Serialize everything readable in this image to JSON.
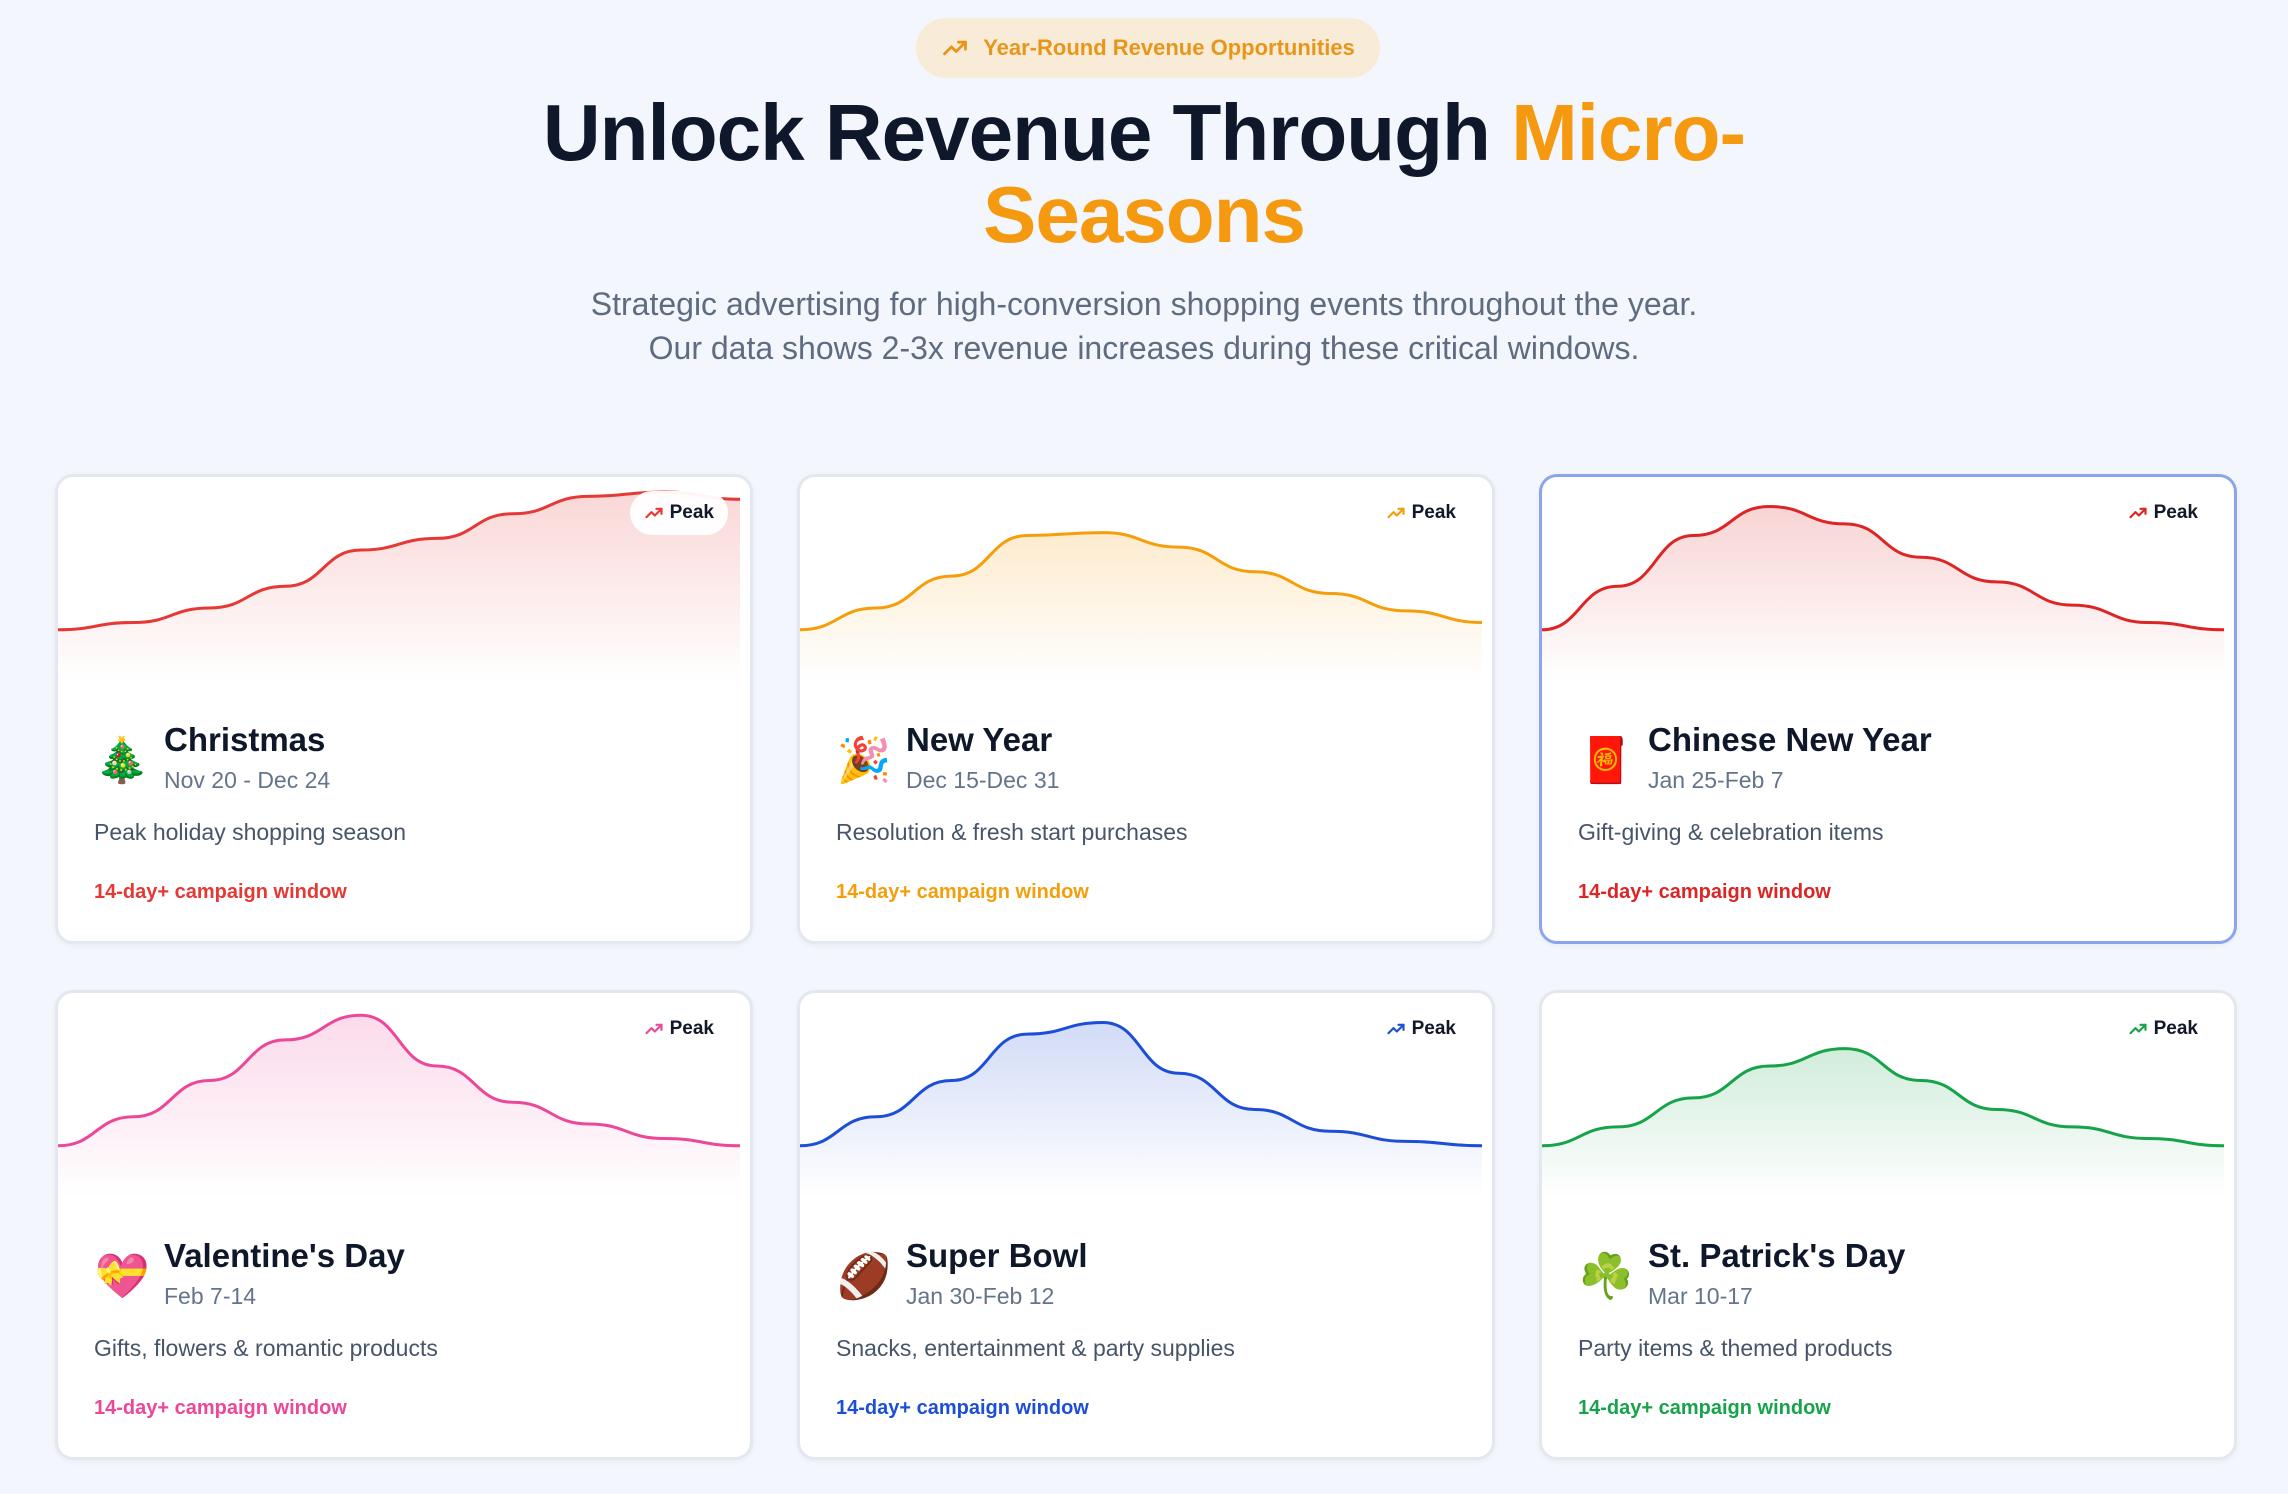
{
  "header": {
    "badge": "Year-Round Revenue Opportunities",
    "title_main": "Unlock Revenue Through ",
    "title_accent_1": "Micro-",
    "title_accent_2": "Seasons",
    "subtitle_line1": "Strategic advertising for high-conversion shopping events throughout the year.",
    "subtitle_line2": "Our data shows 2-3x revenue increases during these critical windows."
  },
  "colors": {
    "badge": "#e8961a",
    "accent": "#f59a10"
  },
  "seasons": [
    {
      "name": "Christmas",
      "dates": "Nov 20 - Dec 24",
      "description": "Peak holiday shopping season",
      "window": "14-day+ campaign window",
      "peak": "Peak",
      "emoji": "🎄",
      "color": "#e53935",
      "curve": [
        0.05,
        0.1,
        0.2,
        0.35,
        0.6,
        0.68,
        0.85,
        0.97,
        1.0,
        0.95
      ]
    },
    {
      "name": "New Year",
      "dates": "Dec 15-Dec 31",
      "description": "Resolution & fresh start purchases",
      "window": "14-day+ campaign window",
      "peak": "Peak",
      "emoji": "🎉",
      "color": "#f59e0b",
      "curve": [
        0.05,
        0.2,
        0.42,
        0.7,
        0.72,
        0.62,
        0.45,
        0.3,
        0.18,
        0.1
      ]
    },
    {
      "name": "Chinese New Year",
      "dates": "Jan 25-Feb 7",
      "description": "Gift-giving & celebration items",
      "window": "14-day+ campaign window",
      "peak": "Peak",
      "emoji": "🧧",
      "color": "#dc2626",
      "curve": [
        0.05,
        0.35,
        0.7,
        0.9,
        0.78,
        0.55,
        0.38,
        0.22,
        0.1,
        0.05
      ]
    },
    {
      "name": "Valentine's Day",
      "dates": "Feb 7-14",
      "description": "Gifts, flowers & romantic products",
      "window": "14-day+ campaign window",
      "peak": "Peak",
      "emoji": "💝",
      "color": "#ec4899",
      "curve": [
        0.05,
        0.25,
        0.5,
        0.78,
        0.95,
        0.6,
        0.35,
        0.2,
        0.1,
        0.05
      ]
    },
    {
      "name": "Super Bowl",
      "dates": "Jan 30-Feb 12",
      "description": "Snacks, entertainment & party supplies",
      "window": "14-day+ campaign window",
      "peak": "Peak",
      "emoji": "🏈",
      "color": "#1d4ed8",
      "curve": [
        0.05,
        0.25,
        0.5,
        0.82,
        0.9,
        0.55,
        0.3,
        0.15,
        0.08,
        0.05
      ]
    },
    {
      "name": "St. Patrick's Day",
      "dates": "Mar 10-17",
      "description": "Party items & themed products",
      "window": "14-day+ campaign window",
      "peak": "Peak",
      "emoji": "☘️",
      "color": "#16a34a",
      "curve": [
        0.05,
        0.18,
        0.38,
        0.6,
        0.72,
        0.5,
        0.3,
        0.18,
        0.1,
        0.05
      ]
    }
  ]
}
